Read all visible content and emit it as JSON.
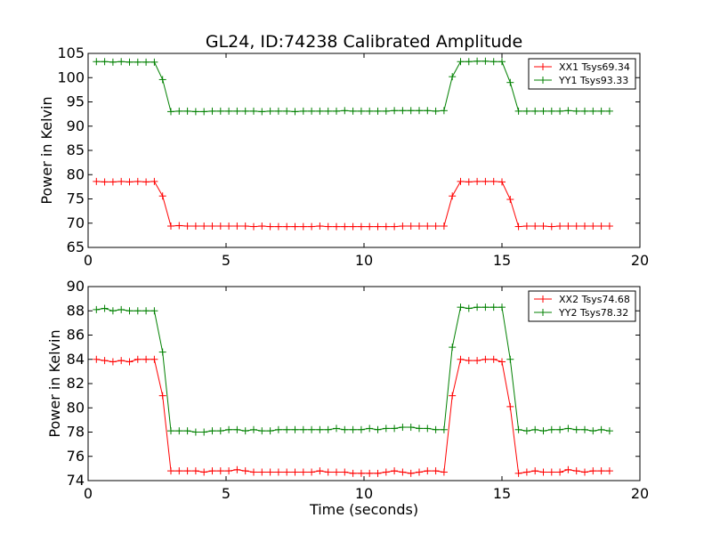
{
  "chart_data": [
    {
      "type": "line",
      "title": "GL24, ID:74238 Calibrated Amplitude",
      "xlabel": "",
      "ylabel": "Power in Kelvin",
      "xlim": [
        0,
        20
      ],
      "ylim": [
        65,
        105
      ],
      "xticks": [
        0,
        5,
        10,
        15,
        20
      ],
      "yticks": [
        65,
        70,
        75,
        80,
        85,
        90,
        95,
        100,
        105
      ],
      "legend_position": "top-right",
      "x": [
        0.3,
        0.6,
        0.9,
        1.2,
        1.5,
        1.8,
        2.1,
        2.4,
        2.7,
        3.0,
        3.3,
        3.6,
        3.9,
        4.2,
        4.5,
        4.8,
        5.1,
        5.4,
        5.7,
        6.0,
        6.3,
        6.6,
        6.9,
        7.2,
        7.5,
        7.8,
        8.1,
        8.4,
        8.7,
        9.0,
        9.3,
        9.6,
        9.9,
        10.2,
        10.5,
        10.8,
        11.1,
        11.4,
        11.7,
        12.0,
        12.3,
        12.6,
        12.9,
        13.2,
        13.5,
        13.8,
        14.1,
        14.4,
        14.7,
        15.0,
        15.3,
        15.6,
        15.9,
        16.2,
        16.5,
        16.8,
        17.1,
        17.4,
        17.7,
        18.0,
        18.3,
        18.6,
        18.9
      ],
      "series": [
        {
          "name": "XX1 Tsys69.34",
          "color": "#ff0000",
          "values": [
            78.6,
            78.5,
            78.5,
            78.6,
            78.5,
            78.6,
            78.5,
            78.6,
            75.6,
            69.4,
            69.5,
            69.4,
            69.4,
            69.4,
            69.4,
            69.4,
            69.4,
            69.4,
            69.4,
            69.3,
            69.4,
            69.3,
            69.3,
            69.3,
            69.3,
            69.3,
            69.3,
            69.4,
            69.3,
            69.3,
            69.3,
            69.3,
            69.3,
            69.3,
            69.3,
            69.3,
            69.3,
            69.4,
            69.4,
            69.4,
            69.4,
            69.4,
            69.4,
            75.6,
            78.6,
            78.5,
            78.6,
            78.6,
            78.6,
            78.5,
            74.9,
            69.3,
            69.4,
            69.4,
            69.4,
            69.3,
            69.4,
            69.4,
            69.4,
            69.4,
            69.4,
            69.4,
            69.4
          ]
        },
        {
          "name": "YY1 Tsys93.33",
          "color": "#008000",
          "values": [
            103.3,
            103.3,
            103.2,
            103.3,
            103.2,
            103.2,
            103.2,
            103.2,
            99.6,
            93.0,
            93.1,
            93.1,
            93.0,
            93.0,
            93.1,
            93.1,
            93.1,
            93.1,
            93.1,
            93.1,
            93.0,
            93.1,
            93.1,
            93.1,
            93.0,
            93.1,
            93.1,
            93.1,
            93.1,
            93.1,
            93.2,
            93.1,
            93.1,
            93.1,
            93.1,
            93.1,
            93.2,
            93.2,
            93.2,
            93.2,
            93.2,
            93.1,
            93.2,
            100.2,
            103.3,
            103.3,
            103.4,
            103.4,
            103.3,
            103.3,
            99.0,
            93.1,
            93.1,
            93.1,
            93.1,
            93.1,
            93.1,
            93.2,
            93.1,
            93.1,
            93.1,
            93.1,
            93.1
          ]
        }
      ]
    },
    {
      "type": "line",
      "title": "",
      "xlabel": "Time (seconds)",
      "ylabel": "Power in Kelvin",
      "xlim": [
        0,
        20
      ],
      "ylim": [
        74,
        90
      ],
      "xticks": [
        0,
        5,
        10,
        15,
        20
      ],
      "yticks": [
        74,
        76,
        78,
        80,
        82,
        84,
        86,
        88,
        90
      ],
      "legend_position": "top-right",
      "x": [
        0.3,
        0.6,
        0.9,
        1.2,
        1.5,
        1.8,
        2.1,
        2.4,
        2.7,
        3.0,
        3.3,
        3.6,
        3.9,
        4.2,
        4.5,
        4.8,
        5.1,
        5.4,
        5.7,
        6.0,
        6.3,
        6.6,
        6.9,
        7.2,
        7.5,
        7.8,
        8.1,
        8.4,
        8.7,
        9.0,
        9.3,
        9.6,
        9.9,
        10.2,
        10.5,
        10.8,
        11.1,
        11.4,
        11.7,
        12.0,
        12.3,
        12.6,
        12.9,
        13.2,
        13.5,
        13.8,
        14.1,
        14.4,
        14.7,
        15.0,
        15.3,
        15.6,
        15.9,
        16.2,
        16.5,
        16.8,
        17.1,
        17.4,
        17.7,
        18.0,
        18.3,
        18.6,
        18.9
      ],
      "series": [
        {
          "name": "XX2 Tsys74.68",
          "color": "#ff0000",
          "values": [
            84.0,
            83.9,
            83.8,
            83.9,
            83.8,
            84.0,
            84.0,
            84.0,
            81.0,
            74.8,
            74.8,
            74.8,
            74.8,
            74.7,
            74.8,
            74.8,
            74.8,
            74.9,
            74.8,
            74.7,
            74.7,
            74.7,
            74.7,
            74.7,
            74.7,
            74.7,
            74.7,
            74.8,
            74.7,
            74.7,
            74.7,
            74.6,
            74.6,
            74.6,
            74.6,
            74.7,
            74.8,
            74.7,
            74.6,
            74.7,
            74.8,
            74.8,
            74.7,
            81.0,
            84.0,
            83.9,
            83.9,
            84.0,
            84.0,
            83.8,
            80.1,
            74.6,
            74.7,
            74.8,
            74.7,
            74.7,
            74.7,
            74.9,
            74.8,
            74.7,
            74.8,
            74.8,
            74.8
          ]
        },
        {
          "name": "YY2 Tsys78.32",
          "color": "#008000",
          "values": [
            88.1,
            88.2,
            88.0,
            88.1,
            88.0,
            88.0,
            88.0,
            88.0,
            84.6,
            78.1,
            78.1,
            78.1,
            78.0,
            78.0,
            78.1,
            78.1,
            78.2,
            78.2,
            78.1,
            78.2,
            78.1,
            78.1,
            78.2,
            78.2,
            78.2,
            78.2,
            78.2,
            78.2,
            78.2,
            78.3,
            78.2,
            78.2,
            78.2,
            78.3,
            78.2,
            78.3,
            78.3,
            78.4,
            78.4,
            78.3,
            78.3,
            78.2,
            78.2,
            85.0,
            88.3,
            88.2,
            88.3,
            88.3,
            88.3,
            88.3,
            84.0,
            78.2,
            78.1,
            78.2,
            78.1,
            78.2,
            78.2,
            78.3,
            78.2,
            78.2,
            78.1,
            78.2,
            78.1
          ]
        }
      ]
    }
  ]
}
